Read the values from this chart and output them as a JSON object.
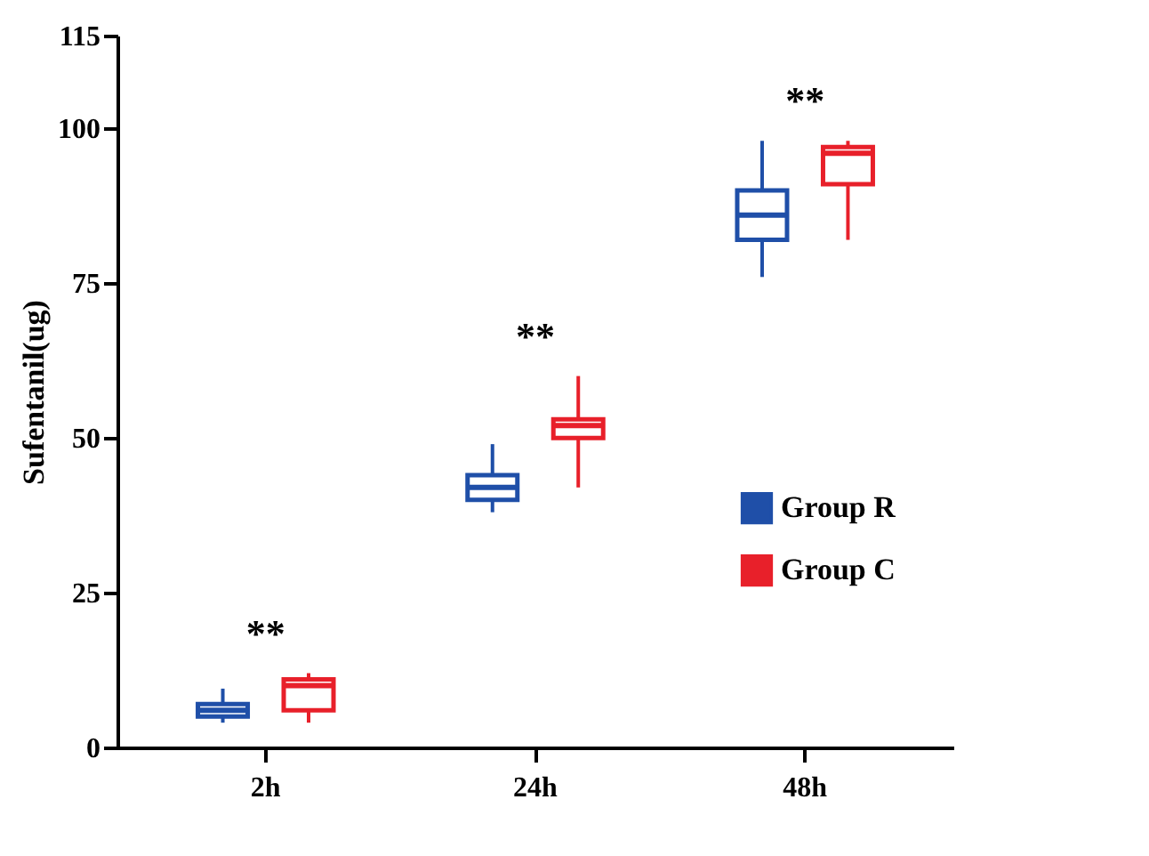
{
  "chart_data": {
    "type": "box",
    "ylabel": "Sufentanil(ug)",
    "categories": [
      "2h",
      "24h",
      "48h"
    ],
    "series": [
      {
        "name": "Group R",
        "color": "#1f4fa8",
        "boxes": [
          {
            "low": 4,
            "q1": 5,
            "median": 6,
            "q3": 7,
            "high": 9.5
          },
          {
            "low": 38,
            "q1": 40,
            "median": 42,
            "q3": 44,
            "high": 49
          },
          {
            "low": 76,
            "q1": 82,
            "median": 86,
            "q3": 90,
            "high": 98
          }
        ]
      },
      {
        "name": "Group C",
        "color": "#e8202a",
        "boxes": [
          {
            "low": 4,
            "q1": 6,
            "median": 10,
            "q3": 11,
            "high": 12
          },
          {
            "low": 42,
            "q1": 50,
            "median": 52,
            "q3": 53,
            "high": 60
          },
          {
            "low": 82,
            "q1": 91,
            "median": 96,
            "q3": 97,
            "high": 98
          }
        ]
      }
    ],
    "annotations": [
      "**",
      "**",
      "**"
    ],
    "ylim": [
      0,
      115
    ],
    "yticks": [
      0,
      25,
      50,
      75,
      100,
      115
    ],
    "grid": false,
    "legend": "right"
  }
}
